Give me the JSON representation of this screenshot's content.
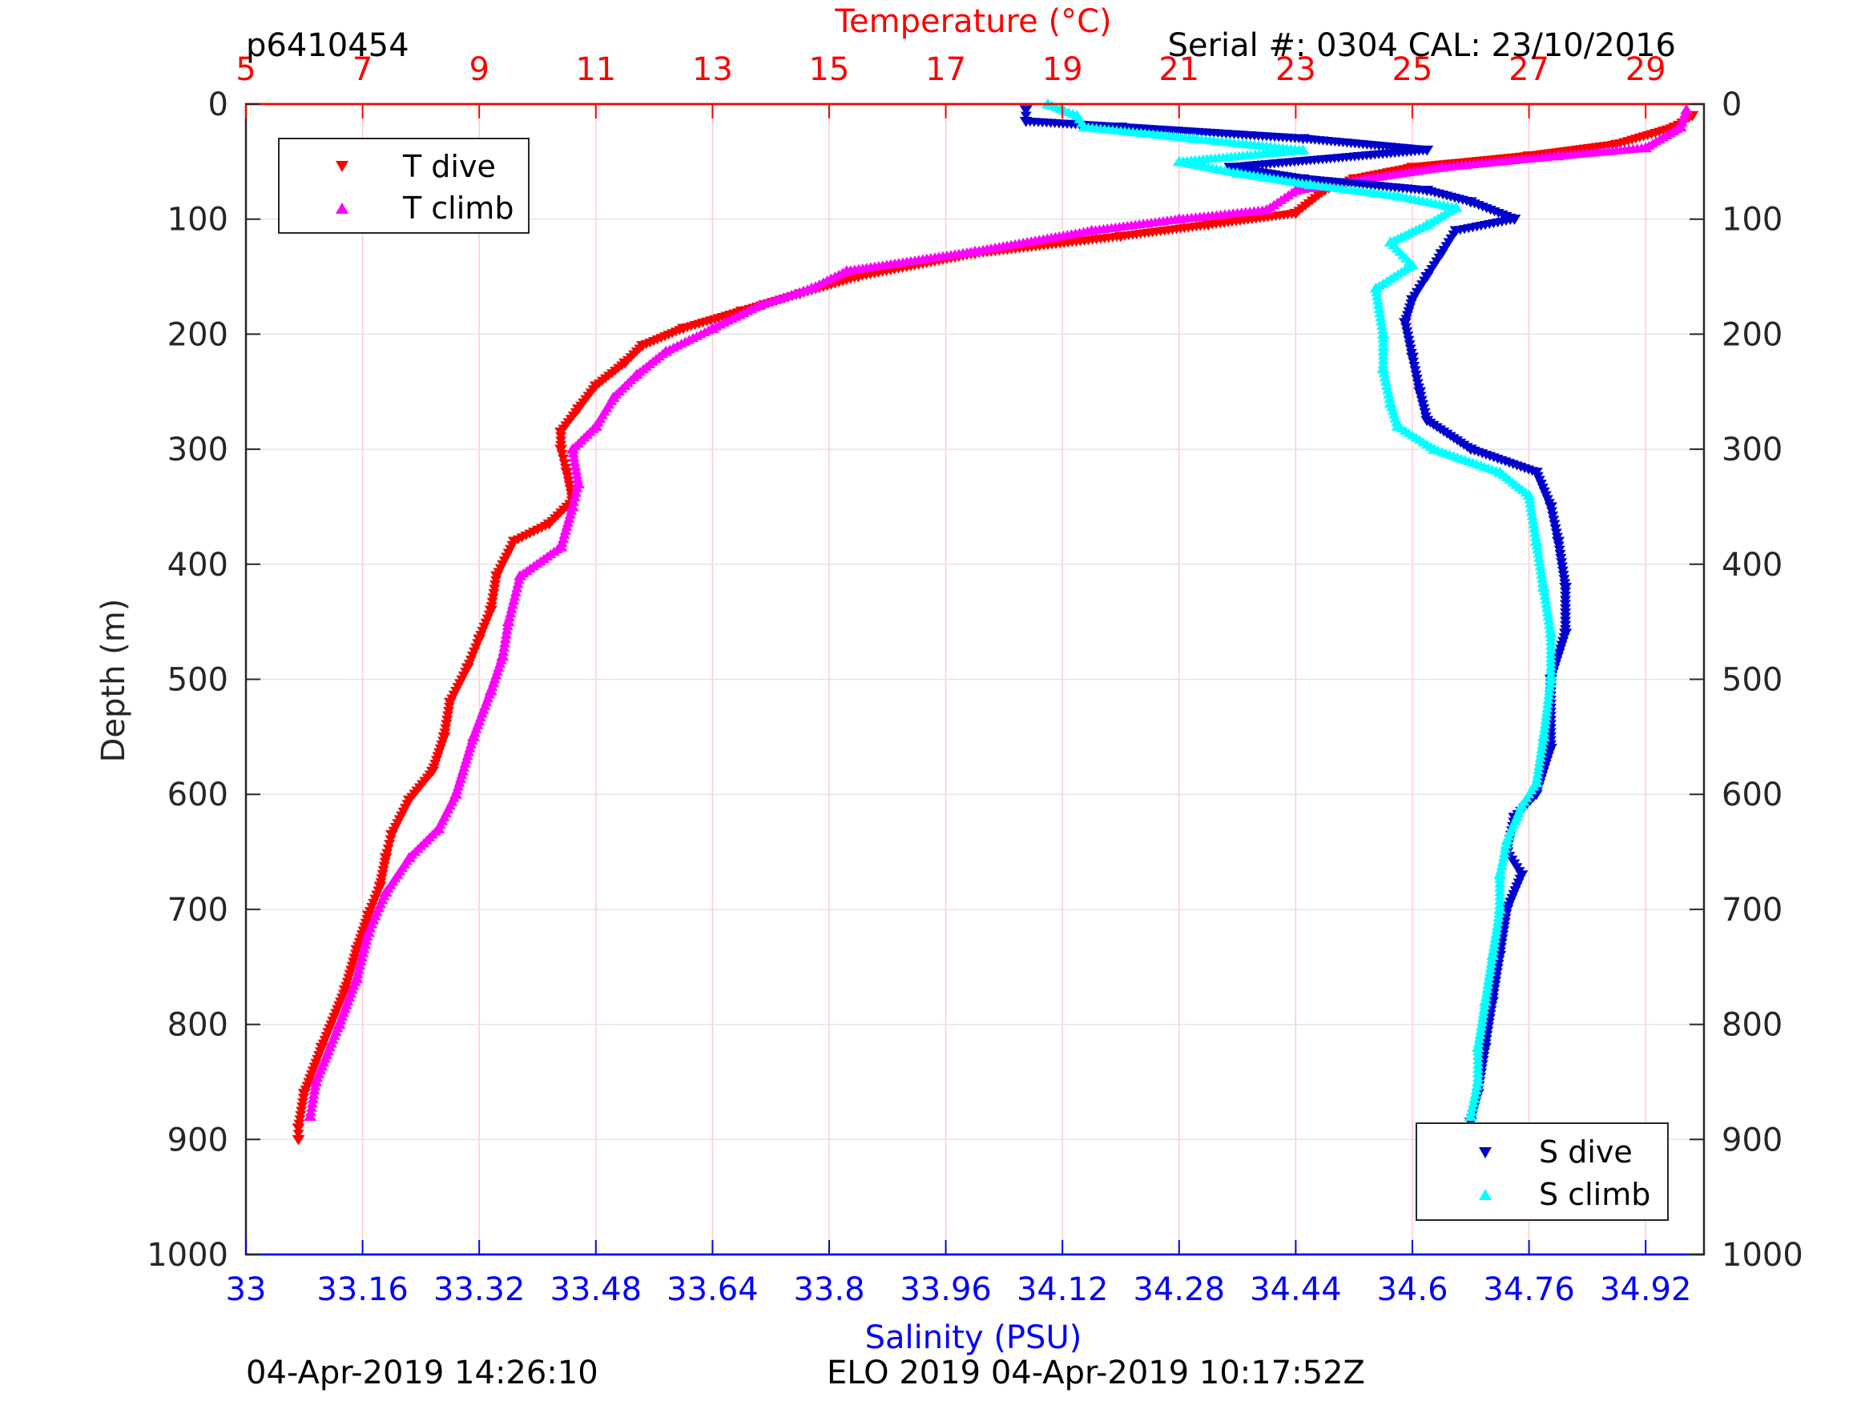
{
  "header": {
    "profile_id": "p6410454",
    "serial": "Serial #: 0304  CAL: 23/10/2016"
  },
  "footer": {
    "timestamp": "04-Apr-2019 14:26:10",
    "mission": "ELO 2019 04-Apr-2019 10:17:52Z"
  },
  "colors": {
    "t_dive": "#ff0000",
    "t_climb": "#ff00ff",
    "s_dive": "#0000cc",
    "s_climb": "#00ffff",
    "temp_axis": "#ff0000",
    "sal_axis": "#0000ff"
  },
  "chart_data": {
    "type": "scatter",
    "top_axis": {
      "label": "Temperature (°C)",
      "range": [
        5,
        30
      ],
      "ticks": [
        "5",
        "7",
        "9",
        "11",
        "13",
        "15",
        "17",
        "19",
        "21",
        "23",
        "25",
        "27",
        "29"
      ],
      "tick_values": [
        5,
        7,
        9,
        11,
        13,
        15,
        17,
        19,
        21,
        23,
        25,
        27,
        29
      ]
    },
    "bottom_axis": {
      "label": "Salinity (PSU)",
      "range": [
        33,
        35
      ],
      "ticks": [
        "33",
        "33.16",
        "33.32",
        "33.48",
        "33.64",
        "33.8",
        "33.96",
        "34.12",
        "34.28",
        "34.44",
        "34.6",
        "34.76",
        "34.92"
      ],
      "tick_values": [
        33,
        33.16,
        33.32,
        33.48,
        33.64,
        33.8,
        33.96,
        34.12,
        34.28,
        34.44,
        34.6,
        34.76,
        34.92
      ]
    },
    "y_axis": {
      "label": "Depth (m)",
      "range": [
        0,
        1000
      ],
      "reversed": true,
      "ticks": [
        "0",
        "100",
        "200",
        "300",
        "400",
        "500",
        "600",
        "700",
        "800",
        "900",
        "1000"
      ],
      "tick_values": [
        0,
        100,
        200,
        300,
        400,
        500,
        600,
        700,
        800,
        900,
        1000
      ]
    },
    "grid": "vertical temperature grid and horizontal depth grid",
    "legends": [
      {
        "placement": "top-left",
        "entries": [
          "T dive",
          "T climb"
        ]
      },
      {
        "placement": "bottom-right",
        "entries": [
          "S dive",
          "S climb"
        ]
      }
    ],
    "series": [
      {
        "name": "T dive",
        "axis": "temperature",
        "points": [
          [
            29.8,
            10
          ],
          [
            29.5,
            20
          ],
          [
            28.5,
            35
          ],
          [
            27.0,
            45
          ],
          [
            25.0,
            55
          ],
          [
            24.0,
            65
          ],
          [
            23.5,
            75
          ],
          [
            23.0,
            95
          ],
          [
            21.5,
            105
          ],
          [
            20.0,
            115
          ],
          [
            17.5,
            130
          ],
          [
            15.5,
            150
          ],
          [
            14.5,
            165
          ],
          [
            13.5,
            180
          ],
          [
            12.5,
            195
          ],
          [
            11.8,
            210
          ],
          [
            11.5,
            225
          ],
          [
            11.0,
            245
          ],
          [
            10.7,
            265
          ],
          [
            10.4,
            285
          ],
          [
            10.4,
            300
          ],
          [
            10.5,
            320
          ],
          [
            10.6,
            345
          ],
          [
            10.2,
            365
          ],
          [
            9.6,
            380
          ],
          [
            9.3,
            410
          ],
          [
            9.2,
            440
          ],
          [
            9.0,
            465
          ],
          [
            8.8,
            490
          ],
          [
            8.5,
            520
          ],
          [
            8.4,
            550
          ],
          [
            8.2,
            580
          ],
          [
            7.8,
            605
          ],
          [
            7.5,
            635
          ],
          [
            7.4,
            655
          ],
          [
            7.3,
            680
          ],
          [
            7.1,
            705
          ],
          [
            6.9,
            735
          ],
          [
            6.7,
            770
          ],
          [
            6.3,
            820
          ],
          [
            6.0,
            860
          ],
          [
            5.9,
            890
          ],
          [
            5.9,
            900
          ]
        ]
      },
      {
        "name": "T climb",
        "axis": "temperature",
        "points": [
          [
            29.7,
            5
          ],
          [
            29.6,
            20
          ],
          [
            29.0,
            38
          ],
          [
            27.5,
            45
          ],
          [
            25.5,
            55
          ],
          [
            24.2,
            65
          ],
          [
            23.0,
            75
          ],
          [
            22.5,
            92
          ],
          [
            21.0,
            100
          ],
          [
            19.5,
            110
          ],
          [
            17.5,
            128
          ],
          [
            15.3,
            145
          ],
          [
            14.7,
            160
          ],
          [
            13.8,
            175
          ],
          [
            13.0,
            195
          ],
          [
            12.2,
            215
          ],
          [
            11.7,
            235
          ],
          [
            11.3,
            255
          ],
          [
            11.0,
            280
          ],
          [
            10.6,
            300
          ],
          [
            10.7,
            330
          ],
          [
            10.6,
            350
          ],
          [
            10.4,
            385
          ],
          [
            9.7,
            410
          ],
          [
            9.5,
            450
          ],
          [
            9.4,
            480
          ],
          [
            9.2,
            510
          ],
          [
            8.9,
            550
          ],
          [
            8.6,
            600
          ],
          [
            8.3,
            630
          ],
          [
            7.8,
            655
          ],
          [
            7.4,
            685
          ],
          [
            7.1,
            720
          ],
          [
            6.9,
            760
          ],
          [
            6.6,
            800
          ],
          [
            6.2,
            850
          ],
          [
            6.1,
            880
          ]
        ]
      },
      {
        "name": "S dive",
        "axis": "salinity",
        "points": [
          [
            34.07,
            5
          ],
          [
            34.07,
            15
          ],
          [
            34.2,
            20
          ],
          [
            34.45,
            30
          ],
          [
            34.62,
            40
          ],
          [
            34.35,
            55
          ],
          [
            34.45,
            65
          ],
          [
            34.62,
            75
          ],
          [
            34.68,
            85
          ],
          [
            34.74,
            100
          ],
          [
            34.66,
            110
          ],
          [
            34.64,
            130
          ],
          [
            34.62,
            150
          ],
          [
            34.6,
            170
          ],
          [
            34.59,
            190
          ],
          [
            34.6,
            220
          ],
          [
            34.61,
            250
          ],
          [
            34.62,
            275
          ],
          [
            34.68,
            300
          ],
          [
            34.77,
            320
          ],
          [
            34.79,
            350
          ],
          [
            34.8,
            380
          ],
          [
            34.81,
            420
          ],
          [
            34.81,
            460
          ],
          [
            34.79,
            500
          ],
          [
            34.79,
            560
          ],
          [
            34.77,
            600
          ],
          [
            34.74,
            620
          ],
          [
            34.73,
            650
          ],
          [
            34.75,
            670
          ],
          [
            34.73,
            700
          ],
          [
            34.72,
            740
          ],
          [
            34.71,
            780
          ],
          [
            34.7,
            820
          ],
          [
            34.69,
            860
          ],
          [
            34.68,
            885
          ],
          [
            34.68,
            895
          ]
        ]
      },
      {
        "name": "S climb",
        "axis": "salinity",
        "points": [
          [
            34.1,
            0
          ],
          [
            34.14,
            10
          ],
          [
            34.15,
            20
          ],
          [
            34.3,
            30
          ],
          [
            34.45,
            40
          ],
          [
            34.28,
            50
          ],
          [
            34.36,
            60
          ],
          [
            34.46,
            70
          ],
          [
            34.58,
            80
          ],
          [
            34.66,
            90
          ],
          [
            34.62,
            105
          ],
          [
            34.57,
            120
          ],
          [
            34.6,
            140
          ],
          [
            34.55,
            160
          ],
          [
            34.56,
            200
          ],
          [
            34.56,
            230
          ],
          [
            34.57,
            260
          ],
          [
            34.58,
            280
          ],
          [
            34.63,
            300
          ],
          [
            34.72,
            320
          ],
          [
            34.76,
            340
          ],
          [
            34.77,
            380
          ],
          [
            34.78,
            420
          ],
          [
            34.79,
            460
          ],
          [
            34.79,
            500
          ],
          [
            34.78,
            550
          ],
          [
            34.77,
            590
          ],
          [
            34.75,
            610
          ],
          [
            34.73,
            640
          ],
          [
            34.72,
            670
          ],
          [
            34.72,
            700
          ],
          [
            34.71,
            740
          ],
          [
            34.7,
            780
          ],
          [
            34.69,
            820
          ],
          [
            34.69,
            850
          ],
          [
            34.68,
            880
          ]
        ]
      }
    ]
  }
}
